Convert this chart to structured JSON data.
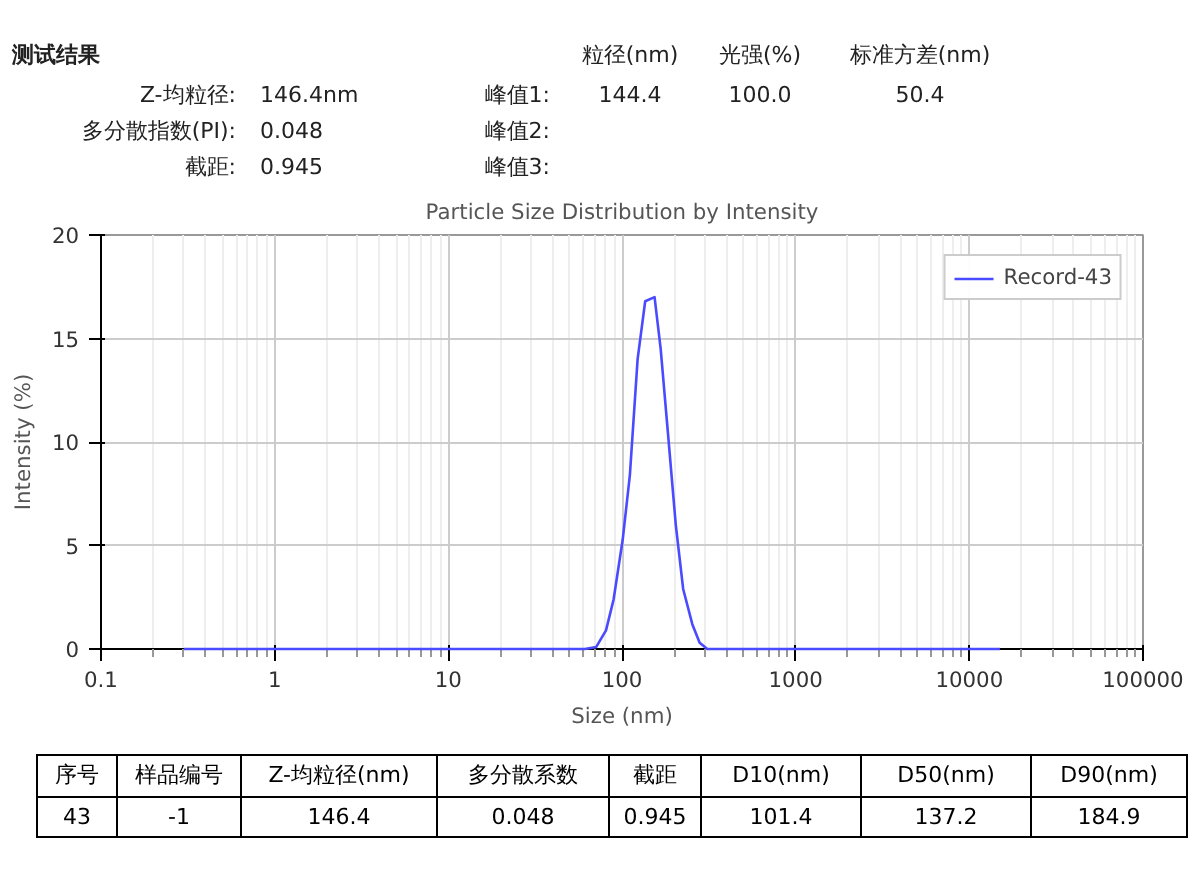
{
  "chart_data": {
    "type": "line",
    "title": "Particle Size Distribution by Intensity",
    "xlabel": "Size (nm)",
    "ylabel": "Intensity (%)",
    "log": "x",
    "xlim": [
      0.1,
      100000
    ],
    "xticks": [
      0.1,
      1,
      10,
      100,
      1000,
      10000,
      100000
    ],
    "ylim": [
      0,
      20
    ],
    "yticks": [
      0,
      5,
      10,
      15,
      20
    ],
    "grid": true,
    "legend": "top right",
    "marker": "none",
    "line_style": "solid",
    "series": [
      {
        "name": "Record-43",
        "color": "#4a4aff",
        "x": [
          0.3,
          1,
          10,
          30,
          61.1,
          71.1,
          80.9,
          89.5,
          101,
          111,
          123,
          136,
          154,
          167,
          184,
          204,
          225,
          254,
          280,
          310,
          1000,
          5000,
          15000
        ],
        "values": [
          0,
          0,
          0,
          0,
          0,
          0.1,
          0.9,
          2.4,
          5.3,
          8.4,
          14.0,
          16.8,
          17.0,
          14.5,
          10.4,
          6.0,
          2.9,
          1.2,
          0.3,
          0,
          0,
          0,
          0
        ]
      }
    ],
    "annotations": [
      "测试结果",
      "Z-均粒径:",
      "146.4nm",
      "多分散指数(PI):",
      "0.048",
      "截距:",
      "0.945",
      "粒径(nm)",
      "光强(%)",
      "标准方差(nm)",
      "峰值1:",
      "144.4",
      "100.0",
      "50.4",
      "峰值2:",
      "峰值3:",
      "序号",
      "样品编号",
      "Z-均粒径(nm)",
      "多分散系数",
      "截距",
      "D10(nm)",
      "D50(nm)",
      "D90(nm)",
      "43",
      "-1",
      "146.4",
      "0.048",
      "0.945",
      "101.4",
      "137.2",
      "184.9"
    ]
  }
}
